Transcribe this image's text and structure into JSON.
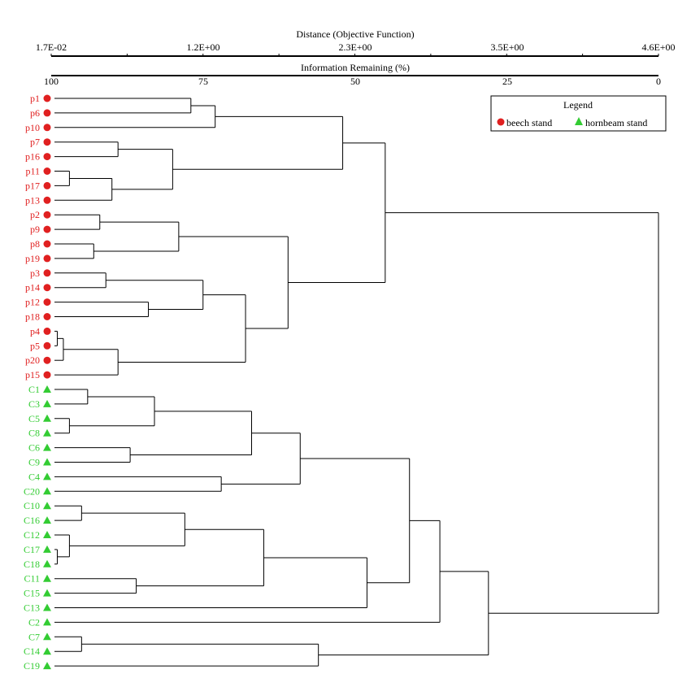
{
  "chart_data": {
    "type": "dendrogram",
    "top_axis": {
      "title": "Distance (Objective Function)",
      "tick_labels": [
        "1.7E-02",
        "1.2E+00",
        "2.3E+00",
        "3.5E+00",
        "4.6E+00"
      ]
    },
    "second_axis": {
      "title": "Information Remaining (%)",
      "tick_labels": [
        "100",
        "75",
        "50",
        "25",
        "0"
      ]
    },
    "axis_direction": "information remaining decreases from 100 (left) to 0 (right)",
    "legend": {
      "title": "Legend",
      "placement": "top-right",
      "entries": [
        {
          "label": "beech stand",
          "marker": "circle",
          "color": "#e02020"
        },
        {
          "label": "hornbeam stand",
          "marker": "triangle",
          "color": "#33cc33"
        }
      ]
    },
    "leaves": [
      {
        "label": "p1",
        "group": "beech stand"
      },
      {
        "label": "p6",
        "group": "beech stand"
      },
      {
        "label": "p10",
        "group": "beech stand"
      },
      {
        "label": "p7",
        "group": "beech stand"
      },
      {
        "label": "p16",
        "group": "beech stand"
      },
      {
        "label": "p11",
        "group": "beech stand"
      },
      {
        "label": "p17",
        "group": "beech stand"
      },
      {
        "label": "p13",
        "group": "beech stand"
      },
      {
        "label": "p2",
        "group": "beech stand"
      },
      {
        "label": "p9",
        "group": "beech stand"
      },
      {
        "label": "p8",
        "group": "beech stand"
      },
      {
        "label": "p19",
        "group": "beech stand"
      },
      {
        "label": "p3",
        "group": "beech stand"
      },
      {
        "label": "p14",
        "group": "beech stand"
      },
      {
        "label": "p12",
        "group": "beech stand"
      },
      {
        "label": "p18",
        "group": "beech stand"
      },
      {
        "label": "p4",
        "group": "beech stand"
      },
      {
        "label": "p5",
        "group": "beech stand"
      },
      {
        "label": "p20",
        "group": "beech stand"
      },
      {
        "label": "p15",
        "group": "beech stand"
      },
      {
        "label": "C1",
        "group": "hornbeam stand"
      },
      {
        "label": "C3",
        "group": "hornbeam stand"
      },
      {
        "label": "C5",
        "group": "hornbeam stand"
      },
      {
        "label": "C8",
        "group": "hornbeam stand"
      },
      {
        "label": "C6",
        "group": "hornbeam stand"
      },
      {
        "label": "C9",
        "group": "hornbeam stand"
      },
      {
        "label": "C4",
        "group": "hornbeam stand"
      },
      {
        "label": "C20",
        "group": "hornbeam stand"
      },
      {
        "label": "C10",
        "group": "hornbeam stand"
      },
      {
        "label": "C16",
        "group": "hornbeam stand"
      },
      {
        "label": "C12",
        "group": "hornbeam stand"
      },
      {
        "label": "C17",
        "group": "hornbeam stand"
      },
      {
        "label": "C18",
        "group": "hornbeam stand"
      },
      {
        "label": "C11",
        "group": "hornbeam stand"
      },
      {
        "label": "C15",
        "group": "hornbeam stand"
      },
      {
        "label": "C13",
        "group": "hornbeam stand"
      },
      {
        "label": "C2",
        "group": "hornbeam stand"
      },
      {
        "label": "C7",
        "group": "hornbeam stand"
      },
      {
        "label": "C14",
        "group": "hornbeam stand"
      },
      {
        "label": "C19",
        "group": "hornbeam stand"
      }
    ],
    "merges": [
      {
        "a": "p1",
        "b": "p6",
        "info_remaining": 77
      },
      {
        "a": "p1,p6",
        "b": "p10",
        "info_remaining": 73
      },
      {
        "a": "p7",
        "b": "p16",
        "info_remaining": 89
      },
      {
        "a": "p11",
        "b": "p17",
        "info_remaining": 97
      },
      {
        "a": "p11,p17",
        "b": "p13",
        "info_remaining": 90
      },
      {
        "a": "p7,p16",
        "b": "p11,p17,p13",
        "info_remaining": 80
      },
      {
        "a": "p1,p6,p10",
        "b": "p7,p16,p11,p17,p13",
        "info_remaining": 52
      },
      {
        "a": "p2",
        "b": "p9",
        "info_remaining": 92
      },
      {
        "a": "p8",
        "b": "p19",
        "info_remaining": 93
      },
      {
        "a": "p2,p9",
        "b": "p8,p19",
        "info_remaining": 79
      },
      {
        "a": "p3",
        "b": "p14",
        "info_remaining": 91
      },
      {
        "a": "p12",
        "b": "p18",
        "info_remaining": 84
      },
      {
        "a": "p3,p14",
        "b": "p12,p18",
        "info_remaining": 75
      },
      {
        "a": "p4",
        "b": "p5",
        "info_remaining": 99
      },
      {
        "a": "p4,p5",
        "b": "p20",
        "info_remaining": 98
      },
      {
        "a": "p4,p5,p20",
        "b": "p15",
        "info_remaining": 89
      },
      {
        "a": "p3,p14,p12,p18",
        "b": "p4,p5,p20,p15",
        "info_remaining": 68
      },
      {
        "a": "p2,p9,p8,p19",
        "b": "p3,p14,p12,p18,p4,p5,p20,p15",
        "info_remaining": 61
      },
      {
        "a": "p1..p13",
        "b": "p2..p15",
        "info_remaining": 45
      },
      {
        "a": "C1",
        "b": "C3",
        "info_remaining": 94
      },
      {
        "a": "C5",
        "b": "C8",
        "info_remaining": 97
      },
      {
        "a": "C1,C3",
        "b": "C5,C8",
        "info_remaining": 83
      },
      {
        "a": "C6",
        "b": "C9",
        "info_remaining": 87
      },
      {
        "a": "C1,C3,C5,C8",
        "b": "C6,C9",
        "info_remaining": 67
      },
      {
        "a": "C4",
        "b": "C20",
        "info_remaining": 72
      },
      {
        "a": "C1..C9",
        "b": "C4,C20",
        "info_remaining": 59
      },
      {
        "a": "C10",
        "b": "C16",
        "info_remaining": 95
      },
      {
        "a": "C17",
        "b": "C18",
        "info_remaining": 99
      },
      {
        "a": "C12",
        "b": "C17,C18",
        "info_remaining": 97
      },
      {
        "a": "C10,C16",
        "b": "C12,C17,C18",
        "info_remaining": 78
      },
      {
        "a": "C11",
        "b": "C15",
        "info_remaining": 86
      },
      {
        "a": "C10,C16,C12,C17,C18",
        "b": "C11,C15",
        "info_remaining": 65
      },
      {
        "a": "C10..C15",
        "b": "C13",
        "info_remaining": 48
      },
      {
        "a": "C1..C20",
        "b": "C10..C13",
        "info_remaining": 41
      },
      {
        "a": "C1..C13",
        "b": "C2",
        "info_remaining": 36
      },
      {
        "a": "C7",
        "b": "C14",
        "info_remaining": 95
      },
      {
        "a": "C7,C14",
        "b": "C19",
        "info_remaining": 56
      },
      {
        "a": "C1..C2",
        "b": "C7,C14,C19",
        "info_remaining": 28
      },
      {
        "a": "beech stand",
        "b": "hornbeam stand",
        "info_remaining": 0
      }
    ]
  }
}
